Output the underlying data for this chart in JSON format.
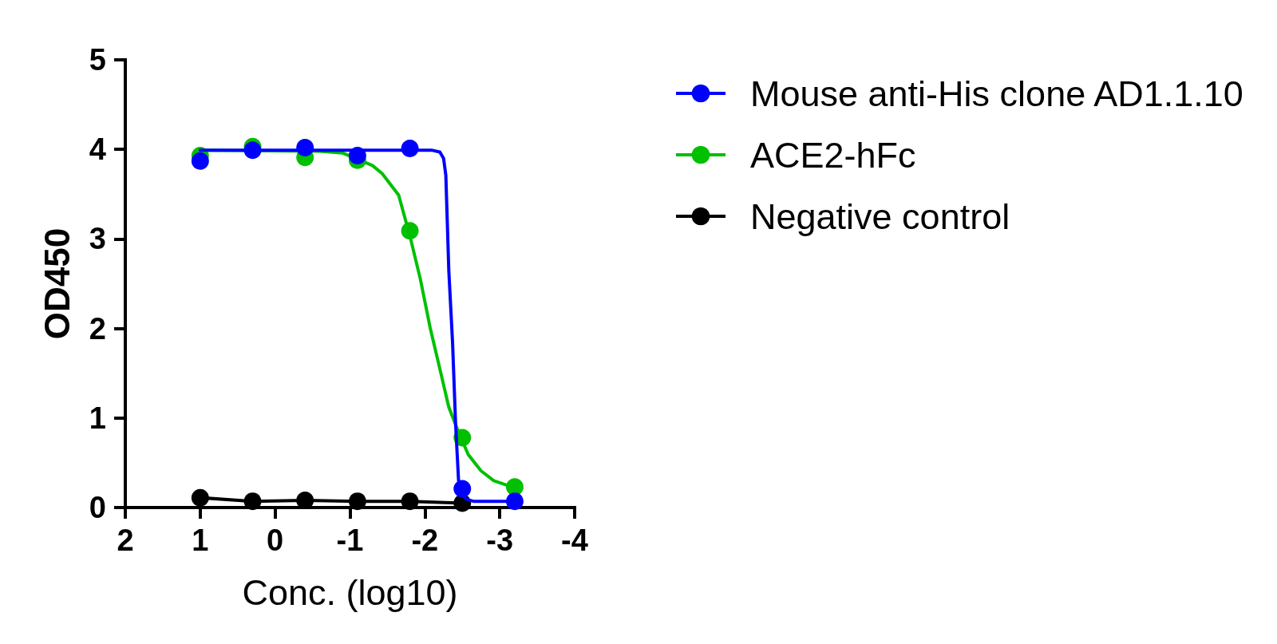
{
  "chart_data": {
    "type": "scatter",
    "xlabel": "Conc. (log10)",
    "ylabel": "OD450",
    "x": [
      1,
      0.3,
      -0.4,
      -1.1,
      -1.8,
      -2.5,
      -3.2
    ],
    "series": [
      {
        "name": "Mouse anti-His clone AD1.1.10",
        "color": "#0000ff",
        "values": [
          3.87,
          3.99,
          4.02,
          3.93,
          4.01,
          0.21,
          0.07
        ]
      },
      {
        "type": "line",
        "color": "#0000ff",
        "marker": "none",
        "x": [
          1,
          -2.1,
          -2.2,
          -2.25,
          -2.28,
          -2.32,
          -2.37,
          -2.41,
          -2.45,
          -2.5,
          -2.56,
          -2.65,
          -3.2
        ],
        "values": [
          3.99,
          3.99,
          3.97,
          3.9,
          3.71,
          2.64,
          1.84,
          0.94,
          0.3,
          0.14,
          0.09,
          0.07,
          0.07
        ]
      },
      {
        "name": "ACE2-hFc",
        "color": "#00c000",
        "values": [
          3.93,
          4.03,
          3.91,
          3.88,
          3.09,
          0.78,
          0.23
        ]
      },
      {
        "type": "line",
        "color": "#00c000",
        "marker": "none",
        "x": [
          1,
          -0.6,
          -0.9,
          -1.3,
          -1.43,
          -1.65,
          -1.81,
          -1.94,
          -2.07,
          -2.2,
          -2.32,
          -2.45,
          -2.58,
          -2.75,
          -2.92,
          -3.2
        ],
        "values": [
          3.99,
          3.98,
          3.96,
          3.82,
          3.73,
          3.49,
          3.0,
          2.55,
          2.01,
          1.55,
          1.12,
          0.84,
          0.59,
          0.41,
          0.3,
          0.22
        ]
      },
      {
        "name": "Negative control",
        "type": "line",
        "color": "#000000",
        "values": [
          0.11,
          0.07,
          0.08,
          0.07,
          0.07,
          0.05,
          null
        ]
      }
    ],
    "xlim": [
      2,
      -4
    ],
    "xticks": [
      2,
      1,
      0,
      -1,
      -2,
      -3,
      -4
    ],
    "ylim": [
      0,
      5
    ],
    "yticks": [
      0,
      1,
      2,
      3,
      4,
      5
    ],
    "grid": false,
    "legend": "top right",
    "marker": "circle",
    "line_style": "solid"
  }
}
